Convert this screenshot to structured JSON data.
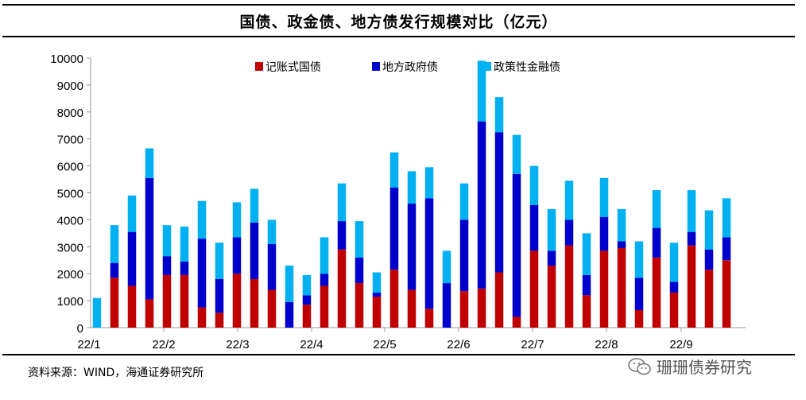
{
  "title": "国债、政金债、地方债发行规模对比（亿元）",
  "source": "资料来源：WIND，海通证券研究所",
  "watermark": "珊珊债券研究",
  "colors": {
    "s1": "#c00000",
    "s2": "#0000cc",
    "s3": "#00b0f0"
  },
  "chart_data": {
    "type": "bar",
    "stacked": true,
    "title": "国债、政金债、地方债发行规模对比（亿元）",
    "ylim": [
      0,
      10000
    ],
    "yticks": [
      "0",
      "1000",
      "2000",
      "3000",
      "4000",
      "5000",
      "6000",
      "7000",
      "8000",
      "9000",
      "10000"
    ],
    "xtick_labels": [
      "22/1",
      "22/2",
      "22/3",
      "22/4",
      "22/5",
      "22/6",
      "22/7",
      "22/8",
      "22/9"
    ],
    "legend": [
      "记账式国债",
      "地方政府债",
      "政策性金融债"
    ],
    "legend_position": "top",
    "series": [
      {
        "name": "记账式国债",
        "values": [
          0,
          1850,
          1550,
          1050,
          1950,
          1950,
          750,
          550,
          2000,
          1800,
          1400,
          0,
          850,
          1550,
          2900,
          1650,
          1150,
          2150,
          1400,
          700,
          0,
          1350,
          1450,
          2050,
          400,
          2850,
          2300,
          3050,
          1200,
          2850,
          2950,
          650,
          2600,
          1300,
          3050,
          2150,
          2500
        ]
      },
      {
        "name": "地方政府债",
        "values": [
          0,
          550,
          2000,
          4500,
          700,
          500,
          2550,
          1250,
          1350,
          2100,
          1700,
          950,
          350,
          450,
          1050,
          950,
          150,
          3050,
          3200,
          4100,
          1650,
          2650,
          6200,
          5200,
          5300,
          1700,
          550,
          950,
          750,
          1250,
          250,
          1200,
          1100,
          400,
          500,
          750,
          850
        ]
      },
      {
        "name": "政策性金融债",
        "values": [
          1100,
          1400,
          1350,
          1100,
          1150,
          1300,
          1400,
          1350,
          1300,
          1250,
          900,
          1350,
          750,
          1350,
          1400,
          1350,
          750,
          1300,
          1200,
          1150,
          1200,
          1350,
          2250,
          1300,
          1450,
          1450,
          1550,
          1450,
          1550,
          1450,
          1200,
          1350,
          1400,
          1450,
          1550,
          1450,
          1450
        ]
      }
    ]
  }
}
